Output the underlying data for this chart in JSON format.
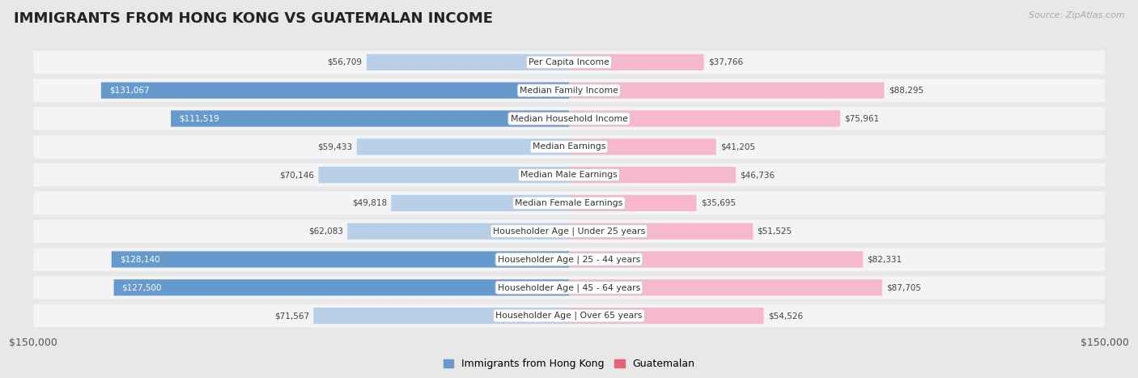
{
  "title": "IMMIGRANTS FROM HONG KONG VS GUATEMALAN INCOME",
  "source": "Source: ZipAtlas.com",
  "categories": [
    "Per Capita Income",
    "Median Family Income",
    "Median Household Income",
    "Median Earnings",
    "Median Male Earnings",
    "Median Female Earnings",
    "Householder Age | Under 25 years",
    "Householder Age | 25 - 44 years",
    "Householder Age | 45 - 64 years",
    "Householder Age | Over 65 years"
  ],
  "hk_values": [
    56709,
    131067,
    111519,
    59433,
    70146,
    49818,
    62083,
    128140,
    127500,
    71567
  ],
  "gt_values": [
    37766,
    88295,
    75961,
    41205,
    46736,
    35695,
    51525,
    82331,
    87705,
    54526
  ],
  "hk_labels": [
    "$56,709",
    "$131,067",
    "$111,519",
    "$59,433",
    "$70,146",
    "$49,818",
    "$62,083",
    "$128,140",
    "$127,500",
    "$71,567"
  ],
  "gt_labels": [
    "$37,766",
    "$88,295",
    "$75,961",
    "$41,205",
    "$46,736",
    "$35,695",
    "$51,525",
    "$82,331",
    "$87,705",
    "$54,526"
  ],
  "max_val": 150000,
  "hk_color_light": "#b8cfe8",
  "hk_color_dark": "#6699cc",
  "gt_color_light": "#f5b8cc",
  "gt_color_dark": "#e8607a",
  "fig_bg": "#e8e8e8",
  "row_bg": "#f4f4f6",
  "bar_height": 0.58,
  "legend_hk": "Immigrants from Hong Kong",
  "legend_gt": "Guatemalan",
  "hk_threshold": 90000,
  "gt_threshold": 90000
}
